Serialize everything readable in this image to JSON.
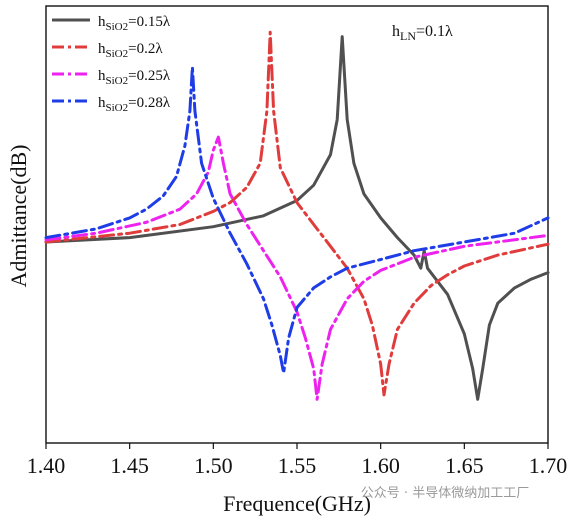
{
  "chart_data": {
    "type": "line",
    "xlabel": "Frequence(GHz)",
    "ylabel": "Admittance(dB)",
    "xlim": [
      1.4,
      1.7
    ],
    "ylim": [
      0,
      100
    ],
    "y_ticks_labeled": false,
    "x_ticks": [
      1.4,
      1.45,
      1.5,
      1.55,
      1.6,
      1.65,
      1.7
    ],
    "x_tick_labels": [
      "1.40",
      "1.45",
      "1.50",
      "1.55",
      "1.60",
      "1.65",
      "1.70"
    ],
    "legend_placement": "top-left",
    "annotation": {
      "base": "h",
      "sub": "LN",
      "rest": "=0.1λ"
    },
    "series": [
      {
        "legend": {
          "base": "h",
          "sub": "SiO2",
          "rest": "=0.15λ"
        },
        "color": "#505050",
        "dash": "solid",
        "points": [
          [
            1.4,
            46
          ],
          [
            1.45,
            47
          ],
          [
            1.5,
            49.5
          ],
          [
            1.53,
            52
          ],
          [
            1.55,
            55.5
          ],
          [
            1.56,
            59
          ],
          [
            1.57,
            66
          ],
          [
            1.574,
            74
          ],
          [
            1.577,
            93
          ],
          [
            1.58,
            74
          ],
          [
            1.584,
            64
          ],
          [
            1.59,
            57
          ],
          [
            1.6,
            51.5
          ],
          [
            1.61,
            47
          ],
          [
            1.62,
            43
          ],
          [
            1.624,
            40
          ],
          [
            1.626,
            44
          ],
          [
            1.628,
            40
          ],
          [
            1.64,
            34
          ],
          [
            1.65,
            25
          ],
          [
            1.655,
            17
          ],
          [
            1.658,
            10
          ],
          [
            1.661,
            17
          ],
          [
            1.665,
            27
          ],
          [
            1.67,
            32
          ],
          [
            1.68,
            35.5
          ],
          [
            1.69,
            37.5
          ],
          [
            1.7,
            39
          ]
        ]
      },
      {
        "legend": {
          "base": "h",
          "sub": "SiO2",
          "rest": "=0.2λ"
        },
        "color": "#e03c3c",
        "dash": "dashdot",
        "points": [
          [
            1.4,
            46
          ],
          [
            1.45,
            48
          ],
          [
            1.48,
            50
          ],
          [
            1.5,
            53
          ],
          [
            1.51,
            55
          ],
          [
            1.52,
            58.5
          ],
          [
            1.528,
            64
          ],
          [
            1.532,
            76
          ],
          [
            1.534,
            94
          ],
          [
            1.536,
            76
          ],
          [
            1.54,
            63
          ],
          [
            1.55,
            55
          ],
          [
            1.56,
            50
          ],
          [
            1.57,
            45
          ],
          [
            1.58,
            40
          ],
          [
            1.59,
            33
          ],
          [
            1.595,
            27
          ],
          [
            1.6,
            18
          ],
          [
            1.602,
            11
          ],
          [
            1.605,
            18
          ],
          [
            1.61,
            26
          ],
          [
            1.62,
            32
          ],
          [
            1.63,
            36
          ],
          [
            1.64,
            38.5
          ],
          [
            1.65,
            40.5
          ],
          [
            1.67,
            43
          ],
          [
            1.7,
            45.5
          ]
        ]
      },
      {
        "legend": {
          "base": "h",
          "sub": "SiO2",
          "rest": "=0.25λ"
        },
        "color": "#ee22ee",
        "dash": "dashdot",
        "points": [
          [
            1.4,
            46.5
          ],
          [
            1.43,
            48
          ],
          [
            1.46,
            50.5
          ],
          [
            1.48,
            53.5
          ],
          [
            1.49,
            57
          ],
          [
            1.497,
            62
          ],
          [
            1.5,
            67
          ],
          [
            1.503,
            70
          ],
          [
            1.506,
            64
          ],
          [
            1.51,
            57
          ],
          [
            1.52,
            50
          ],
          [
            1.53,
            44
          ],
          [
            1.54,
            38
          ],
          [
            1.55,
            30
          ],
          [
            1.555,
            24
          ],
          [
            1.56,
            17
          ],
          [
            1.562,
            10
          ],
          [
            1.565,
            18
          ],
          [
            1.57,
            26
          ],
          [
            1.58,
            33
          ],
          [
            1.59,
            37
          ],
          [
            1.6,
            39.5
          ],
          [
            1.62,
            42.5
          ],
          [
            1.65,
            45
          ],
          [
            1.7,
            47.5
          ]
        ]
      },
      {
        "legend": {
          "base": "h",
          "sub": "SiO2",
          "rest": "=0.28λ"
        },
        "color": "#1f3de6",
        "dash": "dashdot",
        "points": [
          [
            1.4,
            47
          ],
          [
            1.43,
            49
          ],
          [
            1.45,
            51.5
          ],
          [
            1.46,
            53.5
          ],
          [
            1.47,
            56.5
          ],
          [
            1.478,
            61
          ],
          [
            1.483,
            68
          ],
          [
            1.486,
            76
          ],
          [
            1.4875,
            86
          ],
          [
            1.489,
            76
          ],
          [
            1.493,
            64
          ],
          [
            1.5,
            56
          ],
          [
            1.51,
            48
          ],
          [
            1.52,
            41
          ],
          [
            1.53,
            33
          ],
          [
            1.535,
            27
          ],
          [
            1.54,
            20
          ],
          [
            1.542,
            16
          ],
          [
            1.545,
            24
          ],
          [
            1.55,
            31
          ],
          [
            1.56,
            35.5
          ],
          [
            1.57,
            38
          ],
          [
            1.58,
            40
          ],
          [
            1.6,
            42
          ],
          [
            1.62,
            44
          ],
          [
            1.65,
            46
          ],
          [
            1.68,
            48
          ],
          [
            1.7,
            51.5
          ]
        ]
      }
    ]
  },
  "watermark": "公众号 · 半导体微纳加工工厂"
}
